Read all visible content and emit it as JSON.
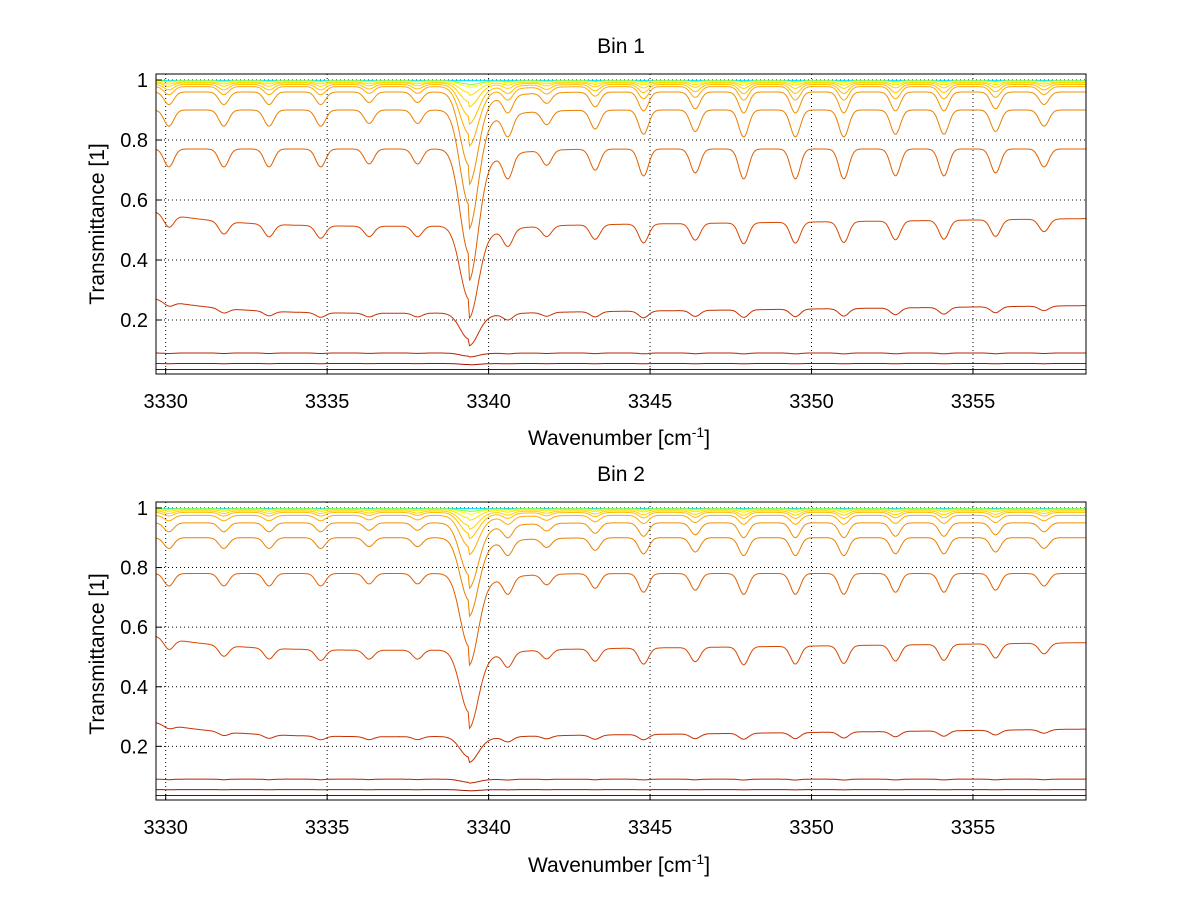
{
  "chart_data": [
    {
      "type": "line",
      "title": "Bin 1",
      "xlabel": "Wavenumber [cm",
      "xlabel_sup": "-1",
      "xlabel_end": "]",
      "ylabel": "Transmittance [1]",
      "xlim": [
        3329.7,
        3358.5
      ],
      "ylim": [
        0.02,
        1.02
      ],
      "xticks": [
        3330,
        3335,
        3340,
        3345,
        3350,
        3355
      ],
      "yticks": [
        0.2,
        0.4,
        0.6,
        0.8,
        1
      ],
      "grid": true,
      "series": [
        {
          "color": "#00e5ff",
          "base": 0.998,
          "depth": 0.0
        },
        {
          "color": "#7fff3a",
          "base": 0.997,
          "depth": 0.003
        },
        {
          "color": "#ffff00",
          "base": 0.996,
          "depth": 0.005
        },
        {
          "color": "#ffe000",
          "base": 0.993,
          "depth": 0.01
        },
        {
          "color": "#ffd000",
          "base": 0.99,
          "depth": 0.018
        },
        {
          "color": "#ffbf00",
          "base": 0.985,
          "depth": 0.03
        },
        {
          "color": "#ffaa00",
          "base": 0.978,
          "depth": 0.045
        },
        {
          "color": "#f09000",
          "base": 0.96,
          "depth": 0.07
        },
        {
          "color": "#e88000",
          "base": 0.9,
          "depth": 0.09
        },
        {
          "color": "#e06000",
          "base": 0.77,
          "depth": 0.1
        },
        {
          "color": "#d84800",
          "base": 0.52,
          "depth": 0.07
        },
        {
          "color": "#c83000",
          "base": 0.23,
          "depth": 0.025
        },
        {
          "color": "#b82000",
          "base": 0.09,
          "depth": 0.003
        },
        {
          "color": "#a01000",
          "base": 0.055,
          "depth": 0.001
        },
        {
          "color": "#800000",
          "base": 0.035,
          "depth": 0.0
        }
      ]
    },
    {
      "type": "line",
      "title": "Bin 2",
      "xlabel": "Wavenumber [cm",
      "xlabel_sup": "-1",
      "xlabel_end": "]",
      "ylabel": "Transmittance [1]",
      "xlim": [
        3329.7,
        3358.5
      ],
      "ylim": [
        0.02,
        1.02
      ],
      "xticks": [
        3330,
        3335,
        3340,
        3345,
        3350,
        3355
      ],
      "yticks": [
        0.2,
        0.4,
        0.6,
        0.8,
        1
      ],
      "grid": true,
      "series": [
        {
          "color": "#00e5ff",
          "base": 0.998,
          "depth": 0.0
        },
        {
          "color": "#7fff3a",
          "base": 0.997,
          "depth": 0.002
        },
        {
          "color": "#ffff00",
          "base": 0.996,
          "depth": 0.004
        },
        {
          "color": "#ffe000",
          "base": 0.994,
          "depth": 0.008
        },
        {
          "color": "#ffd000",
          "base": 0.99,
          "depth": 0.014
        },
        {
          "color": "#ffbf00",
          "base": 0.985,
          "depth": 0.02
        },
        {
          "color": "#ffaa00",
          "base": 0.975,
          "depth": 0.03
        },
        {
          "color": "#f09000",
          "base": 0.95,
          "depth": 0.05
        },
        {
          "color": "#e88000",
          "base": 0.9,
          "depth": 0.06
        },
        {
          "color": "#e06000",
          "base": 0.78,
          "depth": 0.07
        },
        {
          "color": "#d84800",
          "base": 0.53,
          "depth": 0.06
        },
        {
          "color": "#c83000",
          "base": 0.24,
          "depth": 0.02
        },
        {
          "color": "#b82000",
          "base": 0.09,
          "depth": 0.003
        },
        {
          "color": "#a01000",
          "base": 0.055,
          "depth": 0.001
        },
        {
          "color": "#800000",
          "base": 0.035,
          "depth": 0.0
        }
      ]
    }
  ]
}
